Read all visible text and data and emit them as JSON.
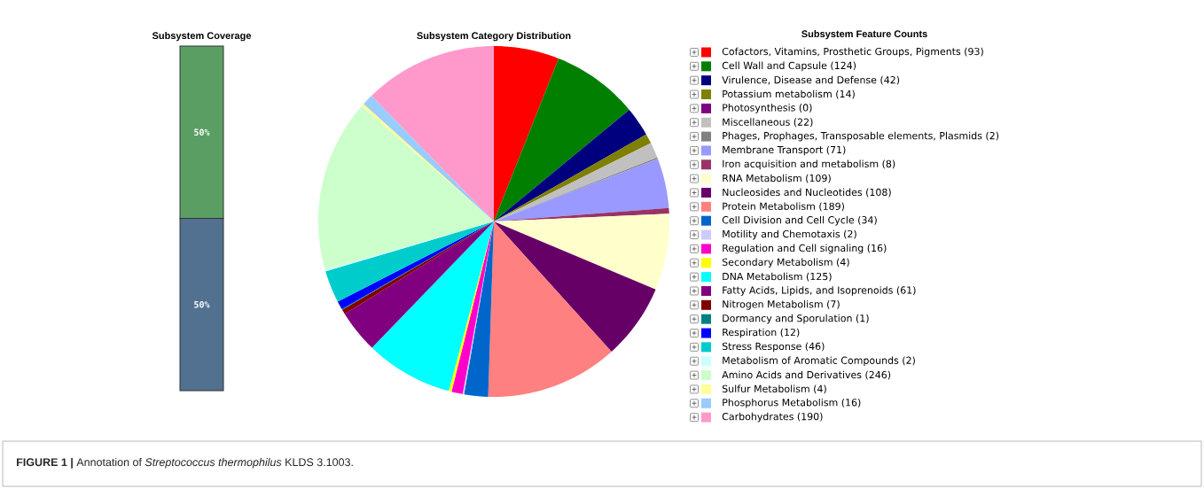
{
  "chart_data": [
    {
      "type": "bar",
      "title": "Subsystem Coverage",
      "stacked": true,
      "categories": [
        null
      ],
      "series": [
        {
          "color": "#52708f",
          "values": [
            50
          ],
          "value_labels": [
            "50%"
          ]
        },
        {
          "color": "#5a9e63",
          "values": [
            50
          ],
          "value_labels": [
            "50%"
          ]
        }
      ]
    },
    {
      "type": "pie",
      "title": "Subsystem Category Distribution",
      "legend_title": "Subsystem Feature Counts",
      "legend": "right",
      "categories": [
        "Cofactors, Vitamins, Prosthetic Groups, Pigments (93)",
        "Cell Wall and Capsule (124)",
        "Virulence, Disease and Defense (42)",
        "Potassium metabolism (14)",
        "Photosynthesis (0)",
        "Miscellaneous (22)",
        "Phages, Prophages, Transposable elements, Plasmids (2)",
        "Membrane Transport (71)",
        "Iron acquisition and metabolism (8)",
        "RNA Metabolism (109)",
        "Nucleosides and Nucleotides (108)",
        "Protein Metabolism (189)",
        "Cell Division and Cell Cycle (34)",
        "Motility and Chemotaxis (2)",
        "Regulation and Cell signaling (16)",
        "Secondary Metabolism (4)",
        "DNA Metabolism (125)",
        "Fatty Acids, Lipids, and Isoprenoids (61)",
        "Nitrogen Metabolism (7)",
        "Dormancy and Sporulation (1)",
        "Respiration (12)",
        "Stress Response (46)",
        "Metabolism of Aromatic Compounds (2)",
        "Amino Acids and Derivatives (246)",
        "Sulfur Metabolism (4)",
        "Phosphorus Metabolism (16)",
        "Carbohydrates (190)"
      ],
      "values": [
        93,
        124,
        42,
        14,
        0,
        22,
        2,
        71,
        8,
        109,
        108,
        189,
        34,
        2,
        16,
        4,
        125,
        61,
        7,
        1,
        12,
        46,
        2,
        246,
        4,
        16,
        190
      ],
      "colors": [
        "#ff0000",
        "#007f00",
        "#00007f",
        "#7f7f00",
        "#7f007f",
        "#c0c0c0",
        "#808080",
        "#9999ff",
        "#993366",
        "#ffffcc",
        "#660066",
        "#ff8080",
        "#0066cc",
        "#ccccff",
        "#ff00cc",
        "#ffff00",
        "#00ffff",
        "#800080",
        "#800000",
        "#008080",
        "#0000ff",
        "#00cccc",
        "#ccffff",
        "#ccffcc",
        "#ffff99",
        "#99ccff",
        "#ff99cc"
      ],
      "annotations": [
        "**FIGURE 1 |** Annotation of *Streptococcus thermophilus* KLDS 3.1003."
      ]
    }
  ]
}
